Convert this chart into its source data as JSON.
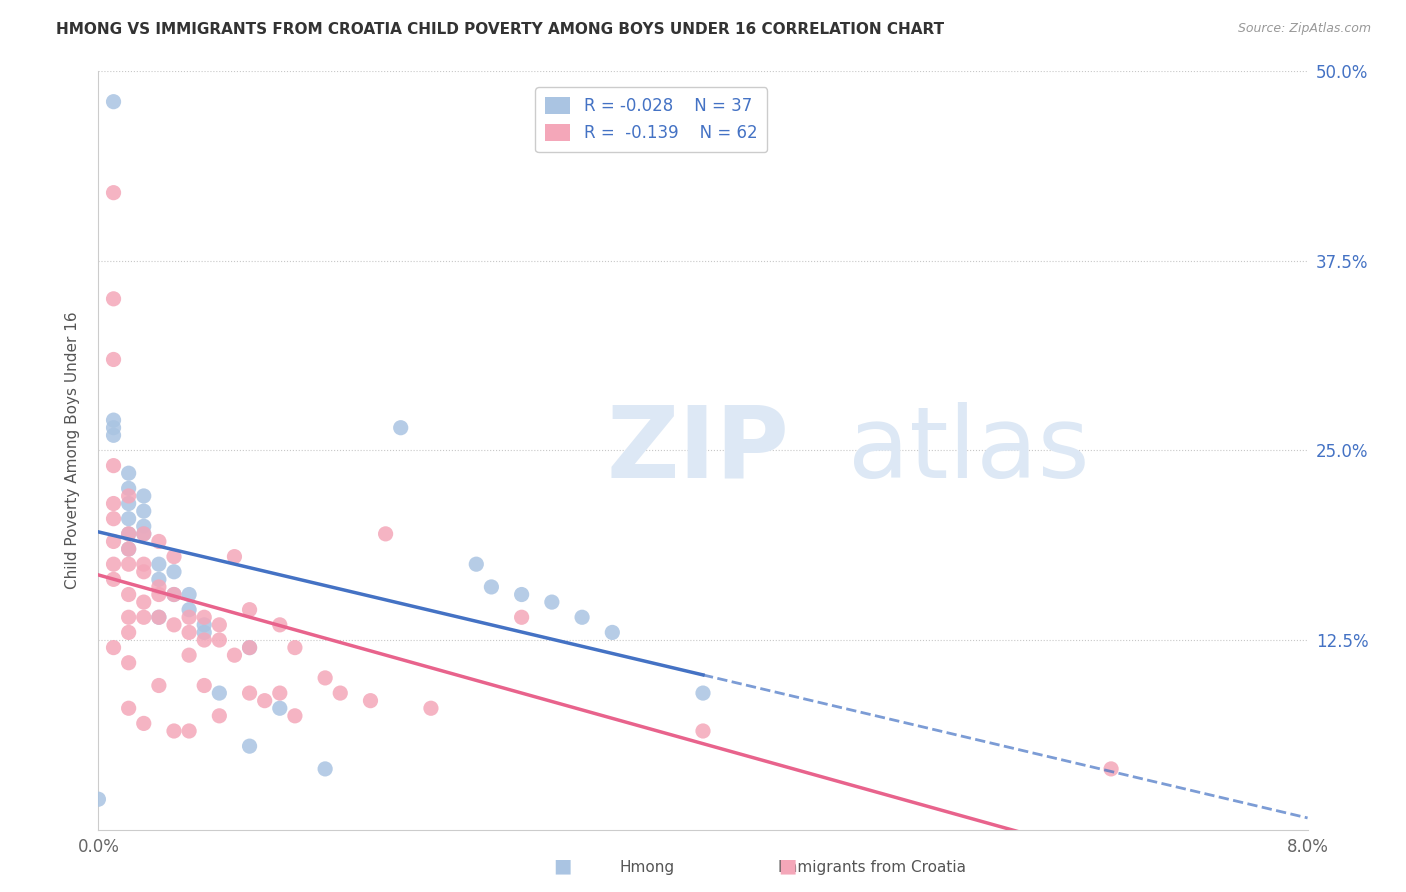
{
  "title": "HMONG VS IMMIGRANTS FROM CROATIA CHILD POVERTY AMONG BOYS UNDER 16 CORRELATION CHART",
  "source": "Source: ZipAtlas.com",
  "xlabel_label": "Hmong",
  "xlabel_label2": "Immigrants from Croatia",
  "ylabel": "Child Poverty Among Boys Under 16",
  "xlim": [
    0.0,
    0.08
  ],
  "ylim": [
    0.0,
    0.5
  ],
  "xticks": [
    0.0,
    0.02,
    0.04,
    0.06,
    0.08
  ],
  "xticklabels": [
    "0.0%",
    "",
    "",
    "",
    "8.0%"
  ],
  "yticks": [
    0.0,
    0.125,
    0.25,
    0.375,
    0.5
  ],
  "yticklabels": [
    "",
    "12.5%",
    "25.0%",
    "37.5%",
    "50.0%"
  ],
  "hmong_R": -0.028,
  "hmong_N": 37,
  "croatia_R": -0.139,
  "croatia_N": 62,
  "hmong_color": "#aac4e2",
  "croatia_color": "#f4a7b9",
  "hmong_line_color": "#4472c4",
  "croatia_line_color": "#e8638c",
  "background_color": "#ffffff",
  "hmong_x": [
    0.0,
    0.001,
    0.001,
    0.001,
    0.001,
    0.002,
    0.002,
    0.002,
    0.002,
    0.002,
    0.002,
    0.003,
    0.003,
    0.003,
    0.003,
    0.004,
    0.004,
    0.004,
    0.005,
    0.005,
    0.006,
    0.006,
    0.007,
    0.007,
    0.008,
    0.01,
    0.01,
    0.012,
    0.015,
    0.02,
    0.025,
    0.026,
    0.028,
    0.03,
    0.032,
    0.034,
    0.04
  ],
  "hmong_y": [
    0.02,
    0.48,
    0.27,
    0.265,
    0.26,
    0.235,
    0.225,
    0.215,
    0.205,
    0.195,
    0.185,
    0.22,
    0.21,
    0.2,
    0.195,
    0.175,
    0.165,
    0.14,
    0.17,
    0.155,
    0.155,
    0.145,
    0.135,
    0.13,
    0.09,
    0.12,
    0.055,
    0.08,
    0.04,
    0.265,
    0.175,
    0.16,
    0.155,
    0.15,
    0.14,
    0.13,
    0.09
  ],
  "croatia_x": [
    0.001,
    0.001,
    0.001,
    0.001,
    0.001,
    0.001,
    0.001,
    0.001,
    0.001,
    0.001,
    0.002,
    0.002,
    0.002,
    0.002,
    0.002,
    0.002,
    0.002,
    0.002,
    0.002,
    0.003,
    0.003,
    0.003,
    0.003,
    0.003,
    0.003,
    0.004,
    0.004,
    0.004,
    0.004,
    0.004,
    0.005,
    0.005,
    0.005,
    0.005,
    0.006,
    0.006,
    0.006,
    0.006,
    0.007,
    0.007,
    0.007,
    0.008,
    0.008,
    0.008,
    0.009,
    0.009,
    0.01,
    0.01,
    0.01,
    0.011,
    0.012,
    0.012,
    0.013,
    0.013,
    0.015,
    0.016,
    0.018,
    0.019,
    0.022,
    0.028,
    0.04,
    0.067
  ],
  "croatia_y": [
    0.42,
    0.35,
    0.31,
    0.24,
    0.215,
    0.205,
    0.19,
    0.175,
    0.165,
    0.12,
    0.22,
    0.195,
    0.185,
    0.175,
    0.155,
    0.14,
    0.13,
    0.11,
    0.08,
    0.195,
    0.175,
    0.17,
    0.15,
    0.14,
    0.07,
    0.19,
    0.16,
    0.155,
    0.14,
    0.095,
    0.18,
    0.155,
    0.135,
    0.065,
    0.14,
    0.13,
    0.115,
    0.065,
    0.14,
    0.125,
    0.095,
    0.135,
    0.125,
    0.075,
    0.18,
    0.115,
    0.145,
    0.12,
    0.09,
    0.085,
    0.135,
    0.09,
    0.12,
    0.075,
    0.1,
    0.09,
    0.085,
    0.195,
    0.08,
    0.14,
    0.065,
    0.04
  ]
}
